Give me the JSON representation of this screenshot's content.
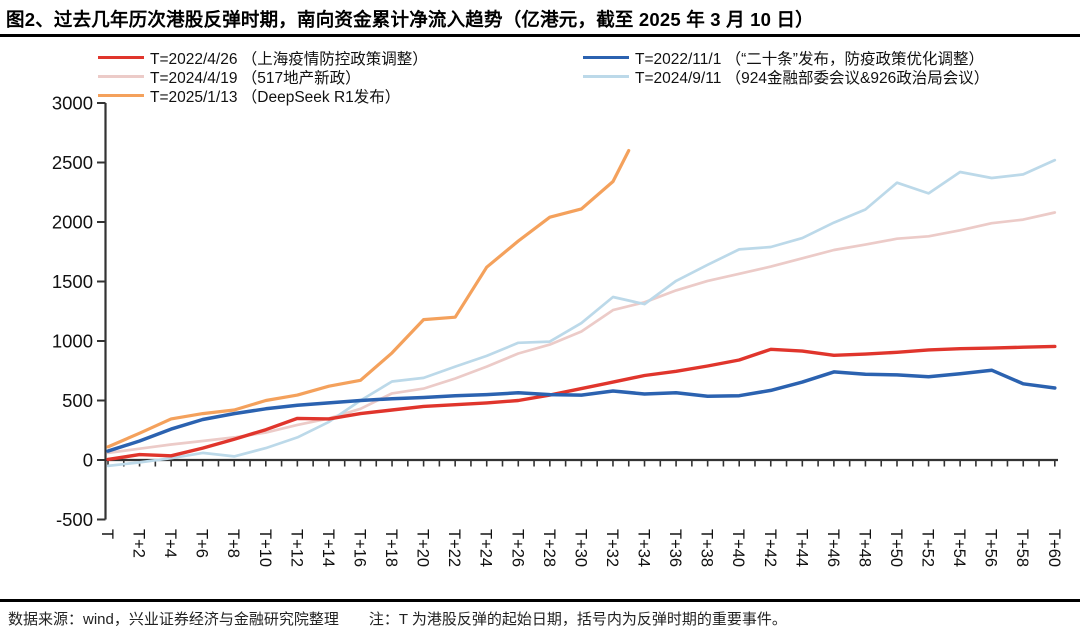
{
  "header": {
    "title": "图2、过去几年历次港股反弹时期，南向资金累计净流入趋势（亿港元，截至 2025 年 3 月 10 日）"
  },
  "footer": {
    "text": "数据来源：wind，兴业证券经济与金融研究院整理　　注：T 为港股反弹的起始日期，括号内为反弹时期的重要事件。"
  },
  "chart_data": {
    "type": "line",
    "title": "南向资金累计净流入趋势（亿港元）",
    "xlabel": "",
    "ylabel": "",
    "ylim": [
      -500,
      3000
    ],
    "yticks": [
      3000,
      2500,
      2000,
      1500,
      1000,
      500,
      0,
      -500
    ],
    "x_range_days": [
      0,
      60
    ],
    "x_tick_labels": [
      "T",
      "T+2",
      "T+4",
      "T+6",
      "T+8",
      "T+10",
      "T+12",
      "T+14",
      "T+16",
      "T+18",
      "T+20",
      "T+22",
      "T+24",
      "T+26",
      "T+28",
      "T+30",
      "T+32",
      "T+34",
      "T+36",
      "T+38",
      "T+40",
      "T+42",
      "T+44",
      "T+46",
      "T+48",
      "T+50",
      "T+52",
      "T+54",
      "T+56",
      "T+58",
      "T+60"
    ],
    "grid": false,
    "legend_position": "top",
    "legend_layout": {
      "left": [
        0,
        1,
        2
      ],
      "right": [
        3,
        4
      ]
    },
    "series": [
      {
        "id": "2022-04-26",
        "name": "T=2022/4/26 （上海疫情防控政策调整）",
        "color": "#e0352c",
        "x": [
          0,
          2,
          4,
          6,
          8,
          10,
          12,
          14,
          16,
          18,
          20,
          22,
          24,
          26,
          28,
          30,
          32,
          34,
          36,
          38,
          40,
          42,
          44,
          46,
          48,
          50,
          52,
          54,
          56,
          58,
          60
        ],
        "values": [
          5,
          45,
          35,
          100,
          175,
          255,
          350,
          345,
          390,
          420,
          450,
          465,
          480,
          500,
          545,
          600,
          655,
          710,
          745,
          790,
          840,
          930,
          915,
          880,
          890,
          905,
          925,
          935,
          940,
          948,
          955
        ]
      },
      {
        "id": "2024-04-19",
        "name": "T=2024/4/19 （517地产新政）",
        "color": "#eccbc8",
        "x": [
          0,
          2,
          4,
          6,
          8,
          10,
          12,
          14,
          16,
          18,
          20,
          22,
          24,
          26,
          28,
          30,
          32,
          34,
          36,
          38,
          40,
          42,
          44,
          46,
          48,
          50,
          52,
          54,
          56,
          58,
          60
        ],
        "values": [
          60,
          95,
          130,
          160,
          190,
          230,
          295,
          350,
          430,
          560,
          600,
          685,
          785,
          895,
          970,
          1080,
          1260,
          1325,
          1425,
          1505,
          1565,
          1625,
          1695,
          1765,
          1810,
          1860,
          1880,
          1930,
          1990,
          2020,
          2080
        ]
      },
      {
        "id": "2025-01-13",
        "name": "T=2025/1/13 （DeepSeek R1发布）",
        "color": "#f4a15c",
        "x": [
          0,
          2,
          4,
          6,
          8,
          10,
          12,
          14,
          16,
          18,
          20,
          22,
          24,
          26,
          28,
          30,
          32,
          33
        ],
        "values": [
          110,
          225,
          345,
          390,
          420,
          500,
          545,
          620,
          670,
          900,
          1180,
          1200,
          1620,
          1840,
          2040,
          2110,
          2340,
          2600
        ]
      },
      {
        "id": "2022-11-01",
        "name": "T=2022/11/1 （“二十条”发布，防疫政策优化调整）",
        "color": "#2b62b0",
        "x": [
          0,
          2,
          4,
          6,
          8,
          10,
          12,
          14,
          16,
          18,
          20,
          22,
          24,
          26,
          28,
          30,
          32,
          34,
          36,
          38,
          40,
          42,
          44,
          46,
          48,
          50,
          52,
          54,
          56,
          58,
          60
        ],
        "values": [
          75,
          160,
          260,
          340,
          390,
          430,
          460,
          480,
          500,
          515,
          525,
          540,
          550,
          565,
          550,
          545,
          580,
          555,
          565,
          535,
          540,
          585,
          655,
          740,
          720,
          715,
          700,
          725,
          755,
          640,
          605
        ]
      },
      {
        "id": "2024-09-11",
        "name": "T=2024/9/11 （924金融部委会议&926政治局会议）",
        "color": "#bcd9e9",
        "x": [
          0,
          2,
          4,
          6,
          8,
          10,
          12,
          14,
          16,
          18,
          20,
          22,
          24,
          26,
          28,
          30,
          32,
          34,
          36,
          38,
          40,
          42,
          44,
          46,
          48,
          50,
          52,
          54,
          56,
          58,
          60
        ],
        "values": [
          -50,
          -20,
          15,
          60,
          30,
          100,
          190,
          320,
          500,
          660,
          690,
          785,
          875,
          985,
          995,
          1150,
          1370,
          1310,
          1505,
          1640,
          1770,
          1790,
          1865,
          1995,
          2105,
          2330,
          2240,
          2420,
          2370,
          2400,
          2520
        ]
      }
    ]
  }
}
